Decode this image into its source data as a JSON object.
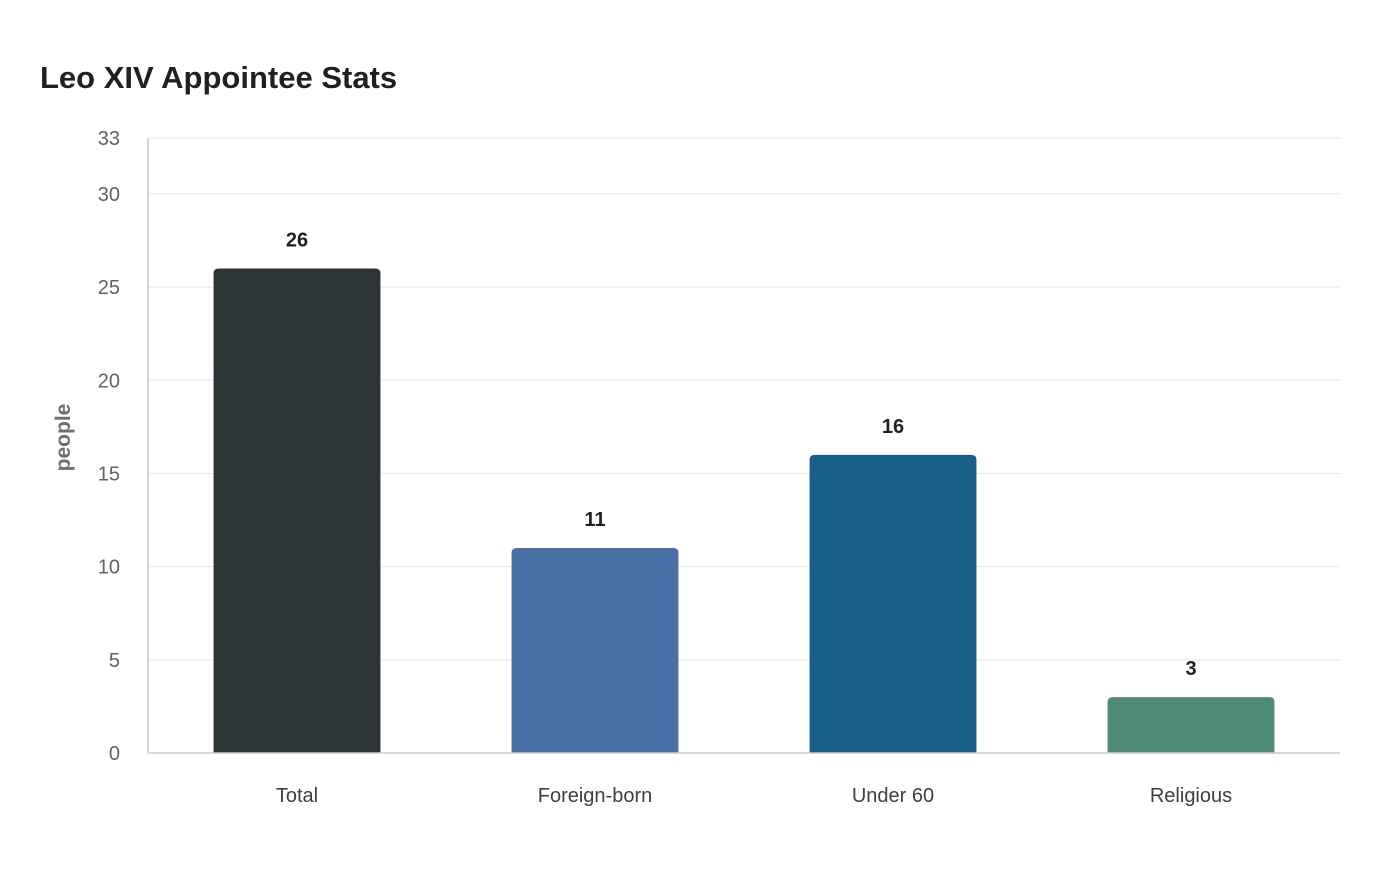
{
  "chart_data": {
    "type": "bar",
    "title": "Leo XIV Appointee Stats",
    "xlabel": "",
    "ylabel": "people",
    "categories": [
      "Total",
      "Foreign-born",
      "Under 60",
      "Religious"
    ],
    "values": [
      26,
      11,
      16,
      3
    ],
    "colors": [
      "#2d3436",
      "#4a6fa5",
      "#166088",
      "#4f8a78"
    ],
    "ylim": [
      0,
      33
    ],
    "yticks": [
      0,
      5,
      10,
      15,
      20,
      25,
      30,
      33
    ],
    "grid": true,
    "legend": "none"
  }
}
